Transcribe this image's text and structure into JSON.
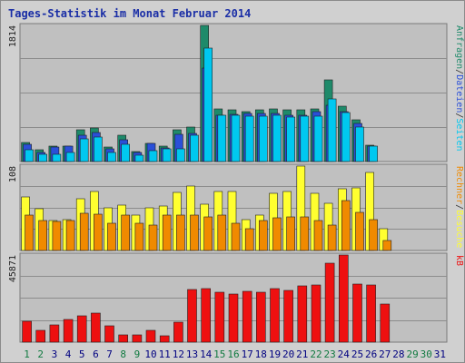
{
  "title": "Tages-Statistik im Monat Februar 2014",
  "colors": {
    "hits": "#1e8a6a",
    "files": "#2a4fd8",
    "pages": "#00c8f0",
    "visits": "#ffff30",
    "sites": "#f08a00",
    "kbytes": "#ee1010",
    "day_weekday": "#000080",
    "day_weekend": "#107a40"
  },
  "chart_data": [
    {
      "type": "bar",
      "panel": "top",
      "y_max_label": "1814",
      "ylim": [
        0,
        1814
      ],
      "x": [
        1,
        2,
        3,
        4,
        5,
        6,
        7,
        8,
        9,
        10,
        11,
        12,
        13,
        14,
        15,
        16,
        17,
        18,
        19,
        20,
        21,
        22,
        23,
        24,
        25,
        26,
        27,
        28,
        29,
        30,
        31
      ],
      "side_labels": [
        "Anfragen",
        "/",
        "Dateien",
        "/",
        "Seiten"
      ],
      "series": [
        {
          "name": "Anfragen",
          "values": [
            260,
            155,
            205,
            210,
            420,
            445,
            195,
            350,
            135,
            240,
            200,
            420,
            460,
            1814,
            700,
            690,
            670,
            690,
            705,
            685,
            695,
            705,
            1090,
            735,
            560,
            220,
            0,
            0,
            0,
            0,
            0
          ]
        },
        {
          "name": "Dateien",
          "values": [
            235,
            125,
            195,
            210,
            345,
            385,
            165,
            295,
            115,
            240,
            180,
            360,
            380,
            1245,
            620,
            630,
            640,
            640,
            640,
            615,
            620,
            670,
            750,
            660,
            510,
            210,
            0,
            0,
            0,
            0,
            0
          ]
        },
        {
          "name": "Seiten",
          "values": [
            155,
            95,
            100,
            120,
            300,
            330,
            125,
            230,
            90,
            140,
            165,
            170,
            345,
            1510,
            620,
            620,
            610,
            600,
            620,
            590,
            600,
            610,
            840,
            650,
            460,
            205,
            0,
            0,
            0,
            0,
            0
          ]
        }
      ]
    },
    {
      "type": "bar",
      "panel": "middle",
      "y_max_label": "108",
      "ylim": [
        0,
        108
      ],
      "x": [
        1,
        2,
        3,
        4,
        5,
        6,
        7,
        8,
        9,
        10,
        11,
        12,
        13,
        14,
        15,
        16,
        17,
        18,
        19,
        20,
        21,
        22,
        23,
        24,
        25,
        26,
        27,
        28,
        29,
        30,
        31
      ],
      "side_labels": [
        "Rechner",
        "/",
        "Besuche"
      ],
      "series": [
        {
          "name": "Besuche",
          "values": [
            68,
            53,
            38,
            40,
            66,
            76,
            55,
            58,
            45,
            55,
            57,
            74,
            83,
            59,
            75,
            75,
            40,
            45,
            73,
            75,
            108,
            73,
            60,
            79,
            80,
            100,
            28,
            0,
            0,
            0,
            0
          ]
        },
        {
          "name": "Rechner",
          "values": [
            45,
            38,
            37,
            38,
            48,
            46,
            35,
            45,
            35,
            32,
            45,
            45,
            45,
            43,
            45,
            35,
            28,
            38,
            42,
            43,
            43,
            38,
            32,
            64,
            49,
            40,
            13,
            0,
            0,
            0,
            0
          ]
        }
      ]
    },
    {
      "type": "bar",
      "panel": "bottom",
      "y_max_label": "45871",
      "ylim": [
        0,
        45871
      ],
      "x": [
        1,
        2,
        3,
        4,
        5,
        6,
        7,
        8,
        9,
        10,
        11,
        12,
        13,
        14,
        15,
        16,
        17,
        18,
        19,
        20,
        21,
        22,
        23,
        24,
        25,
        26,
        27,
        28,
        29,
        30,
        31
      ],
      "side_labels": [
        "kB"
      ],
      "series": [
        {
          "name": "kB",
          "values": [
            11100,
            6400,
            9000,
            11800,
            14000,
            15500,
            8800,
            4000,
            3700,
            6200,
            3300,
            10700,
            27800,
            28300,
            26200,
            25100,
            26800,
            26500,
            28200,
            27400,
            29600,
            30000,
            41800,
            45871,
            30400,
            30000,
            20000,
            0,
            0,
            0,
            0
          ]
        }
      ]
    }
  ],
  "days": [
    {
      "label": "1",
      "weekend": true
    },
    {
      "label": "2",
      "weekend": true
    },
    {
      "label": "3",
      "weekend": false
    },
    {
      "label": "4",
      "weekend": false
    },
    {
      "label": "5",
      "weekend": false
    },
    {
      "label": "6",
      "weekend": false
    },
    {
      "label": "7",
      "weekend": false
    },
    {
      "label": "8",
      "weekend": true
    },
    {
      "label": "9",
      "weekend": true
    },
    {
      "label": "10",
      "weekend": false
    },
    {
      "label": "11",
      "weekend": false
    },
    {
      "label": "12",
      "weekend": false
    },
    {
      "label": "13",
      "weekend": false
    },
    {
      "label": "14",
      "weekend": false
    },
    {
      "label": "15",
      "weekend": true
    },
    {
      "label": "16",
      "weekend": true
    },
    {
      "label": "17",
      "weekend": false
    },
    {
      "label": "18",
      "weekend": false
    },
    {
      "label": "19",
      "weekend": false
    },
    {
      "label": "20",
      "weekend": false
    },
    {
      "label": "21",
      "weekend": false
    },
    {
      "label": "22",
      "weekend": true
    },
    {
      "label": "23",
      "weekend": true
    },
    {
      "label": "24",
      "weekend": false
    },
    {
      "label": "25",
      "weekend": false
    },
    {
      "label": "26",
      "weekend": false
    },
    {
      "label": "27",
      "weekend": false
    },
    {
      "label": "28",
      "weekend": false
    },
    {
      "label": "29",
      "weekend": true
    },
    {
      "label": "30",
      "weekend": true
    },
    {
      "label": "31",
      "weekend": false
    }
  ]
}
